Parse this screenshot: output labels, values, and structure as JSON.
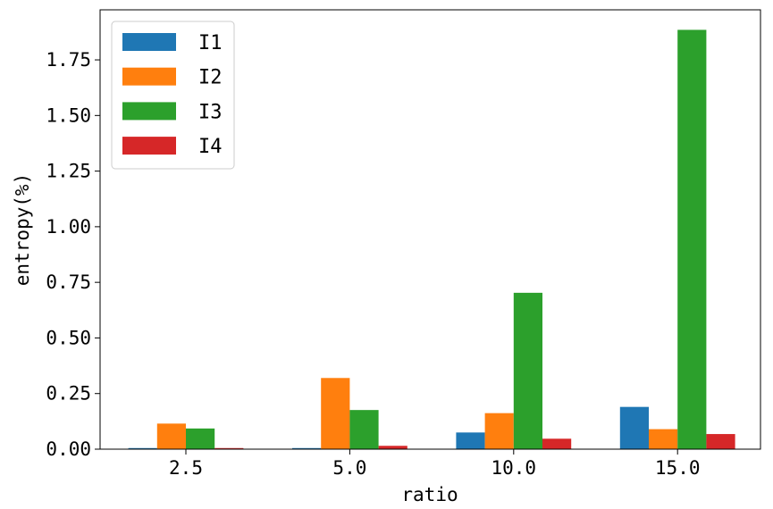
{
  "chart_data": {
    "type": "bar",
    "title": "",
    "xlabel": "ratio",
    "ylabel": "entropy(%)",
    "categories": [
      "2.5",
      "5.0",
      "10.0",
      "15.0"
    ],
    "series": [
      {
        "name": "I1",
        "color": "#1f77b4",
        "values": [
          0.005,
          0.005,
          0.075,
          0.19
        ]
      },
      {
        "name": "I2",
        "color": "#ff7f0e",
        "values": [
          0.115,
          0.32,
          0.162,
          0.09
        ]
      },
      {
        "name": "I3",
        "color": "#2ca02c",
        "values": [
          0.093,
          0.176,
          0.703,
          1.885
        ]
      },
      {
        "name": "I4",
        "color": "#d62728",
        "values": [
          0.005,
          0.015,
          0.047,
          0.068
        ]
      }
    ],
    "ylim": [
      0,
      1.975
    ],
    "yticks": [
      0.0,
      0.25,
      0.5,
      0.75,
      1.0,
      1.25,
      1.5,
      1.75
    ],
    "ytick_labels": [
      "0.00",
      "0.25",
      "0.50",
      "0.75",
      "1.00",
      "1.25",
      "1.50",
      "1.75"
    ],
    "grid": false,
    "legend_position": "top-left"
  }
}
